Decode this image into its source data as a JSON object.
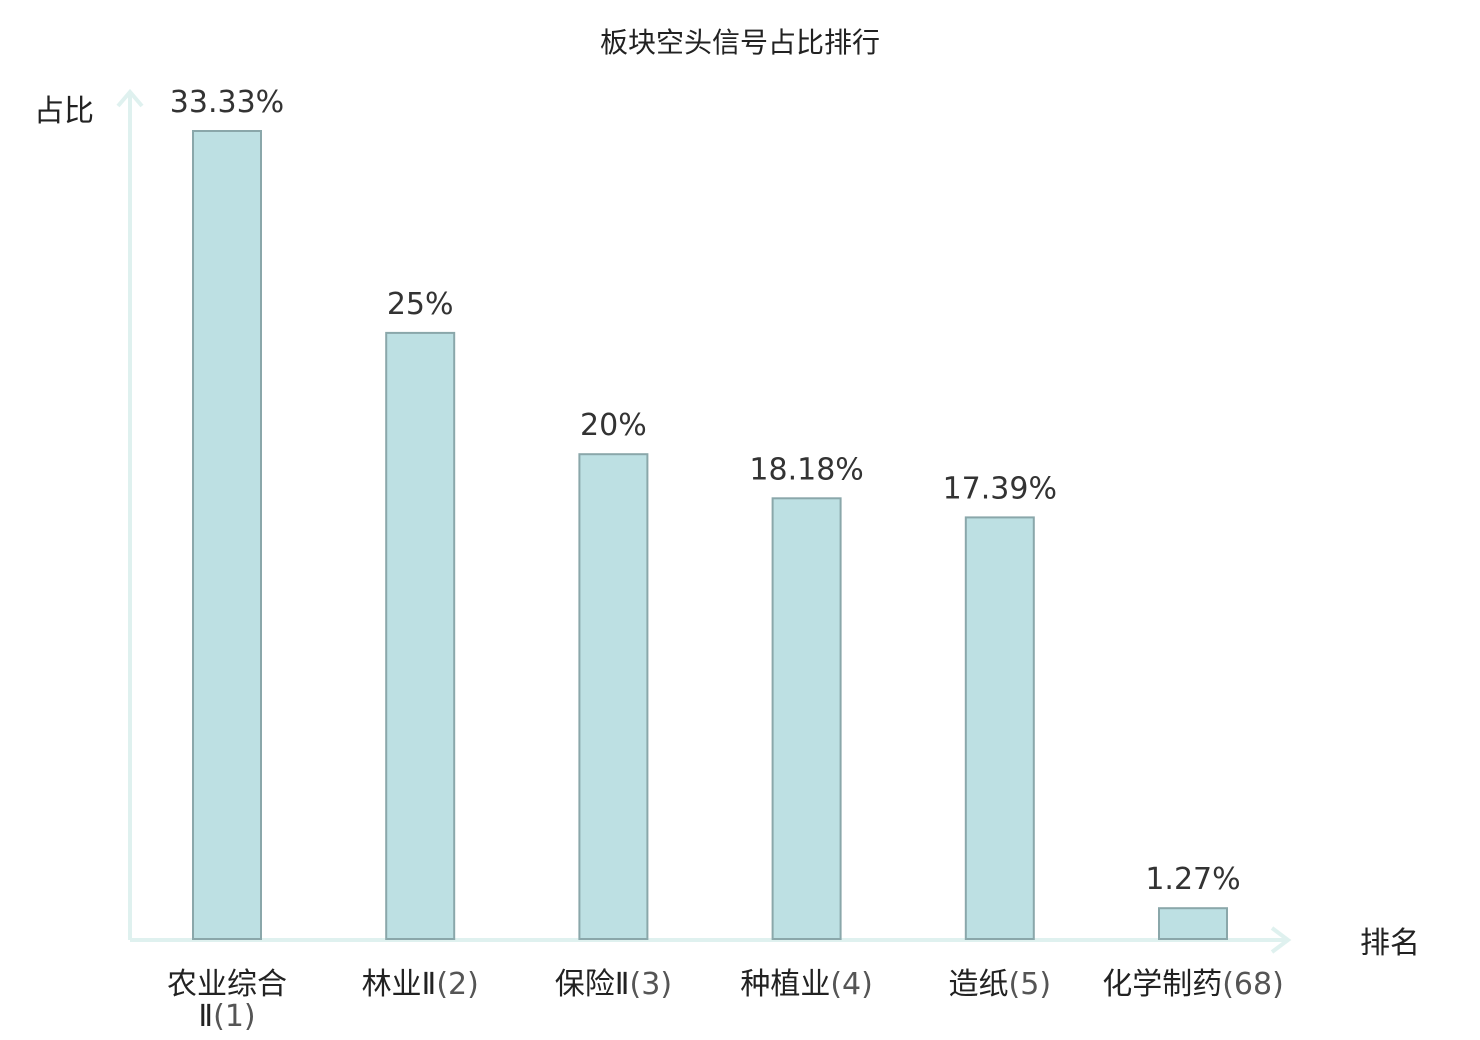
{
  "chart_data": {
    "type": "bar",
    "title": "板块空头信号占比排行",
    "ylabel": "占比",
    "xlabel": "排名",
    "categories": [
      "农业综合Ⅱ(1)",
      "林业Ⅱ(2)",
      "保险Ⅱ(3)",
      "种植业(4)",
      "造纸(5)",
      "化学制药(68)"
    ],
    "category_names": [
      "农业综合Ⅱ",
      "林业Ⅱ",
      "保险Ⅱ",
      "种植业",
      "造纸",
      "化学制药"
    ],
    "category_ranks": [
      "(1)",
      "(2)",
      "(3)",
      "(4)",
      "(5)",
      "(68)"
    ],
    "values": [
      33.33,
      25,
      20,
      18.18,
      17.39,
      1.27
    ],
    "value_labels": [
      "33.33%",
      "25%",
      "20%",
      "18.18%",
      "17.39%",
      "1.27%"
    ],
    "highlight_index": 5,
    "grid": false,
    "colors": {
      "bar_fill": "#bde0e3",
      "bar_stroke": "#8aa7aa",
      "axis": "#dff1ef",
      "highlight": "#dd1111",
      "text": "#222222"
    }
  }
}
